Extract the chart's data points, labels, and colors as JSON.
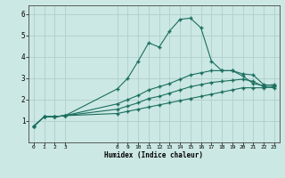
{
  "xlabel": "Humidex (Indice chaleur)",
  "background_color": "#cce8e4",
  "grid_color": "#aed0cc",
  "line_color": "#1a6e5e",
  "xlim": [
    -0.5,
    23.5
  ],
  "ylim": [
    0,
    6.4
  ],
  "xticks": [
    0,
    1,
    2,
    3,
    8,
    9,
    10,
    11,
    12,
    13,
    14,
    15,
    16,
    17,
    18,
    19,
    20,
    21,
    22,
    23
  ],
  "yticks": [
    1,
    2,
    3,
    4,
    5,
    6
  ],
  "lines": [
    {
      "x": [
        0,
        1,
        2,
        3,
        8,
        9,
        10,
        11,
        12,
        13,
        14,
        15,
        16,
        17,
        18,
        19,
        20,
        21,
        22,
        23
      ],
      "y": [
        0.75,
        1.2,
        1.2,
        1.25,
        2.5,
        3.0,
        3.8,
        4.65,
        4.45,
        5.2,
        5.75,
        5.8,
        5.35,
        3.8,
        3.35,
        3.35,
        3.1,
        2.75,
        2.65,
        2.7
      ]
    },
    {
      "x": [
        0,
        1,
        2,
        3,
        8,
        9,
        10,
        11,
        12,
        13,
        14,
        15,
        16,
        17,
        18,
        19,
        20,
        21,
        22,
        23
      ],
      "y": [
        0.75,
        1.2,
        1.2,
        1.25,
        1.8,
        2.0,
        2.2,
        2.45,
        2.6,
        2.75,
        2.95,
        3.15,
        3.25,
        3.35,
        3.35,
        3.35,
        3.2,
        3.15,
        2.7,
        2.65
      ]
    },
    {
      "x": [
        0,
        1,
        2,
        3,
        8,
        9,
        10,
        11,
        12,
        13,
        14,
        15,
        16,
        17,
        18,
        19,
        20,
        21,
        22,
        23
      ],
      "y": [
        0.75,
        1.2,
        1.2,
        1.25,
        1.55,
        1.7,
        1.85,
        2.05,
        2.15,
        2.3,
        2.45,
        2.6,
        2.7,
        2.8,
        2.85,
        2.9,
        2.95,
        2.85,
        2.6,
        2.55
      ]
    },
    {
      "x": [
        0,
        1,
        2,
        3,
        8,
        9,
        10,
        11,
        12,
        13,
        14,
        15,
        16,
        17,
        18,
        19,
        20,
        21,
        22,
        23
      ],
      "y": [
        0.75,
        1.2,
        1.2,
        1.25,
        1.35,
        1.45,
        1.55,
        1.65,
        1.75,
        1.85,
        1.95,
        2.05,
        2.15,
        2.25,
        2.35,
        2.45,
        2.55,
        2.55,
        2.55,
        2.6
      ]
    }
  ]
}
